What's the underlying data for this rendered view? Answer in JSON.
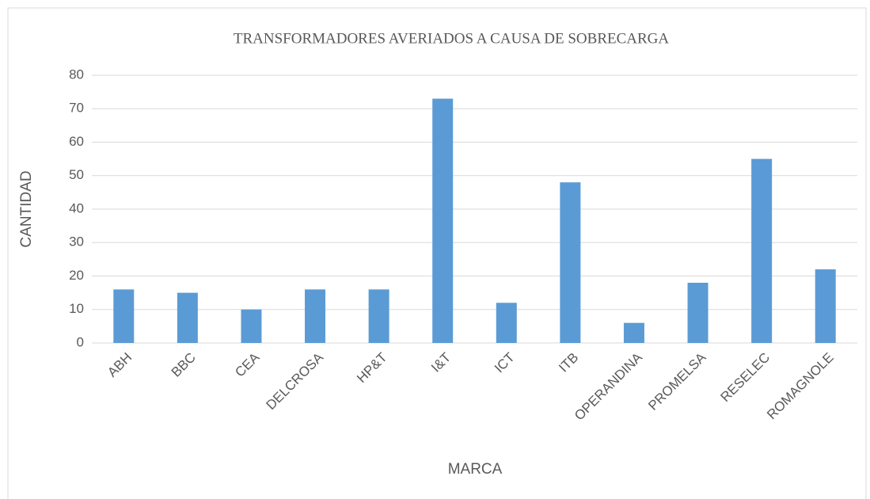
{
  "chart_data": {
    "type": "bar",
    "title": "TRANSFORMADORES AVERIADOS A CAUSA DE SOBRECARGA",
    "x_label": "MARCA",
    "y_label": "CANTIDAD",
    "categories": [
      "ABH",
      "BBC",
      "CEA",
      "DELCROSA",
      "HP&T",
      "I&T",
      "ICT",
      "ITB",
      "OPERANDINA",
      "PROMELSA",
      "RESELEC",
      "ROMAGNOLE"
    ],
    "values": [
      16,
      15,
      10,
      16,
      16,
      73,
      12,
      48,
      6,
      18,
      55,
      22
    ],
    "color": "#5b9bd5",
    "ylim": [
      0,
      80
    ],
    "yticks": [
      0,
      10,
      20,
      30,
      40,
      50,
      60,
      70,
      80
    ],
    "grid": true
  }
}
